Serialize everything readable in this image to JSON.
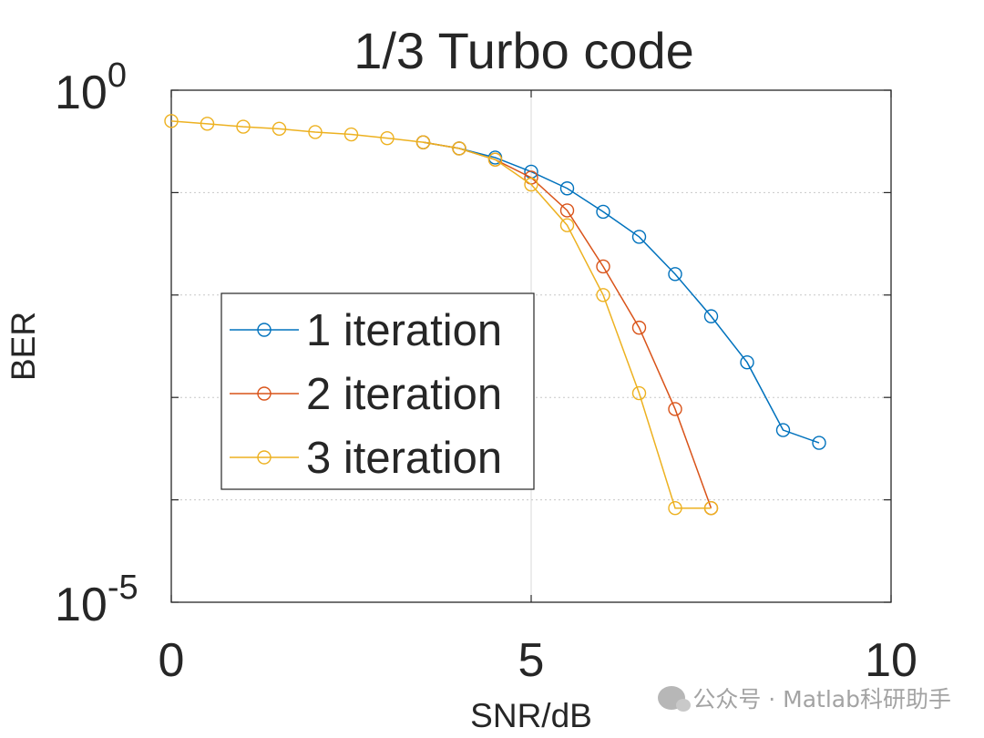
{
  "chart_data": {
    "type": "line",
    "title": "1/3 Turbo code",
    "xlabel": "SNR/dB",
    "ylabel": "BER",
    "xlim": [
      0,
      10
    ],
    "ylim": [
      1e-05,
      1
    ],
    "yscale": "log",
    "x_ticks": [
      "0",
      "5",
      "10"
    ],
    "y_ticks": [
      {
        "value": 1,
        "base": "10",
        "exp": "0"
      },
      {
        "value": 1e-05,
        "base": "10",
        "exp": "-5"
      }
    ],
    "grid": "x at 5, y at each decade (dotted)",
    "legend_position": "center-left",
    "series": [
      {
        "name": "1 iteration",
        "color": "#0072BD",
        "x": [
          3.5,
          4.0,
          4.5,
          5.0,
          5.5,
          6.0,
          6.5,
          7.0,
          7.5,
          8.0,
          8.5,
          9.0
        ],
        "y": [
          0.31,
          0.27,
          0.22,
          0.16,
          0.11,
          0.065,
          0.037,
          0.016,
          0.0062,
          0.0022,
          0.00048,
          0.00036
        ]
      },
      {
        "name": "2 iteration",
        "color": "#D95319",
        "x": [
          3.5,
          4.0,
          4.5,
          5.0,
          5.5,
          6.0,
          6.5,
          7.0,
          7.5
        ],
        "y": [
          0.31,
          0.27,
          0.21,
          0.14,
          0.067,
          0.019,
          0.0048,
          0.00077,
          8.3e-05
        ]
      },
      {
        "name": "3 iteration",
        "color": "#EDB120",
        "x": [
          0,
          0.5,
          1.0,
          1.5,
          2.0,
          2.5,
          3.0,
          3.5,
          4.0,
          4.5,
          5.0,
          5.5,
          6.0,
          6.5,
          7.0,
          7.5
        ],
        "y": [
          0.5,
          0.47,
          0.44,
          0.42,
          0.39,
          0.37,
          0.34,
          0.31,
          0.27,
          0.21,
          0.12,
          0.048,
          0.01,
          0.0011,
          8.3e-05,
          8.3e-05
        ]
      }
    ]
  },
  "watermark": "公众号 · Matlab科研助手"
}
